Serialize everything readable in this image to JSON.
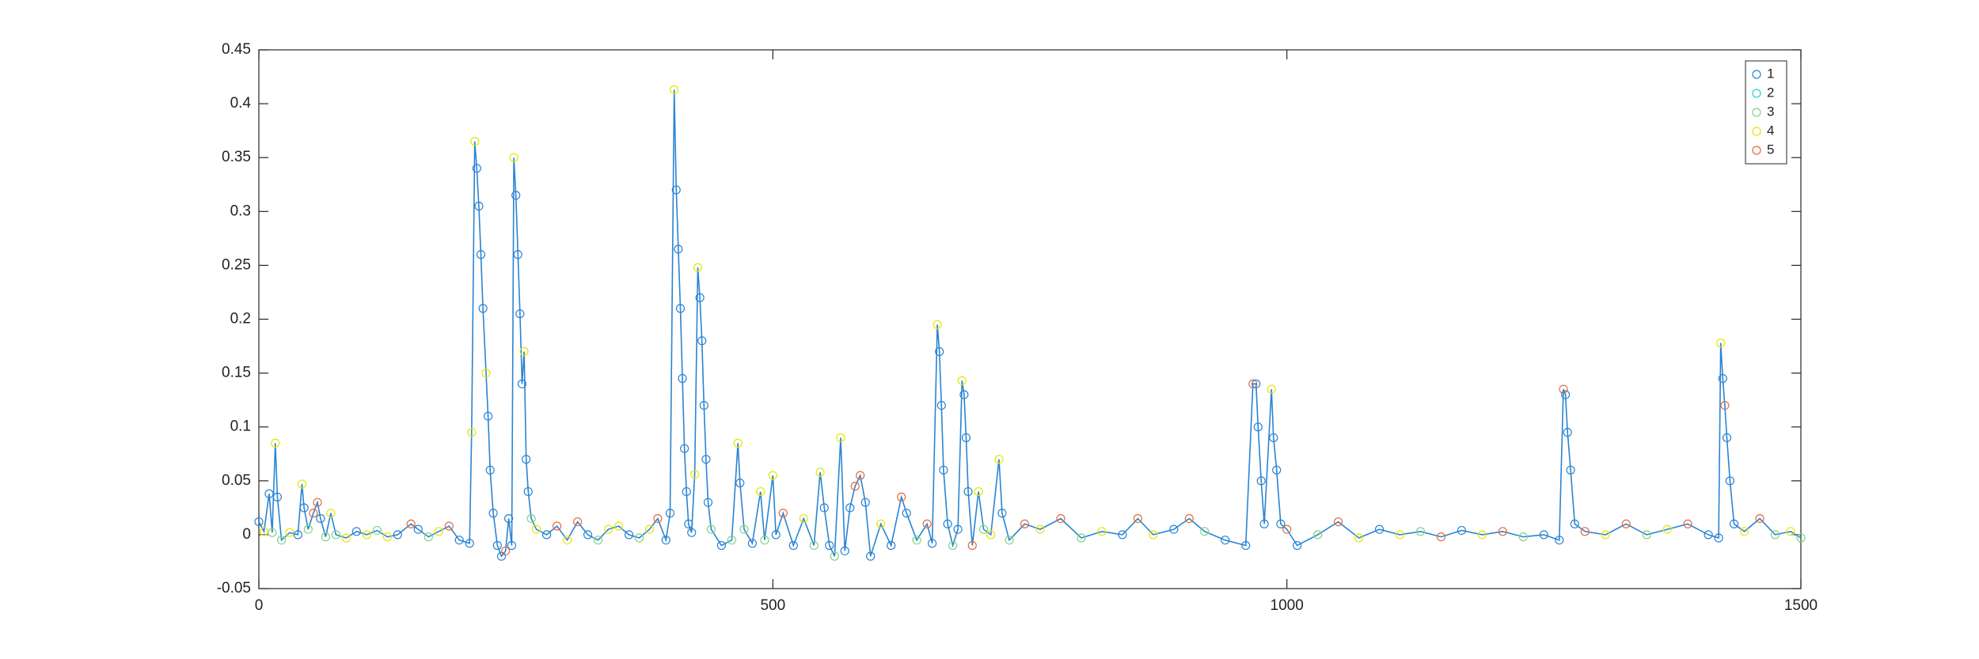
{
  "chart_data": {
    "type": "line-clusters",
    "xlim": [
      0,
      1500
    ],
    "xticks": [
      0,
      500,
      1000,
      1500
    ],
    "ylim": [
      -0.05,
      0.45
    ],
    "yticks": [
      -0.05,
      0,
      0.05,
      0.1,
      0.15,
      0.2,
      0.25,
      0.3,
      0.35,
      0.4,
      0.45
    ],
    "grid": false,
    "legend": "upper right",
    "line_color": "#2a84d2",
    "series": [
      {
        "name": "1",
        "color": "#2a84d2"
      },
      {
        "name": "2",
        "color": "#1fd3d0"
      },
      {
        "name": "3",
        "color": "#7fd57f"
      },
      {
        "name": "4",
        "color": "#e6e600"
      },
      {
        "name": "5",
        "color": "#ea6a35"
      }
    ],
    "x": [
      0,
      5,
      10,
      13,
      16,
      18,
      22,
      30,
      38,
      42,
      44,
      48,
      53,
      57,
      60,
      65,
      70,
      75,
      85,
      95,
      105,
      115,
      125,
      135,
      148,
      155,
      165,
      175,
      185,
      195,
      205,
      207,
      210,
      212,
      214,
      216,
      218,
      221,
      223,
      225,
      228,
      232,
      236,
      240,
      243,
      246,
      248,
      250,
      252,
      254,
      256,
      258,
      260,
      262,
      265,
      270,
      280,
      290,
      300,
      310,
      320,
      330,
      340,
      350,
      360,
      370,
      380,
      388,
      396,
      400,
      404,
      406,
      408,
      410,
      412,
      414,
      416,
      418,
      421,
      424,
      427,
      429,
      431,
      433,
      435,
      437,
      440,
      450,
      460,
      466,
      468,
      472,
      480,
      488,
      492,
      500,
      503,
      510,
      520,
      530,
      540,
      546,
      550,
      555,
      560,
      566,
      570,
      575,
      580,
      585,
      590,
      595,
      605,
      615,
      625,
      630,
      640,
      650,
      655,
      660,
      662,
      664,
      666,
      670,
      675,
      680,
      684,
      686,
      688,
      690,
      694,
      700,
      705,
      712,
      720,
      723,
      730,
      745,
      760,
      780,
      800,
      820,
      840,
      855,
      870,
      890,
      905,
      920,
      940,
      960,
      967,
      970,
      972,
      975,
      978,
      985,
      987,
      990,
      994,
      1000,
      1010,
      1030,
      1050,
      1070,
      1090,
      1110,
      1130,
      1150,
      1170,
      1190,
      1210,
      1230,
      1250,
      1265,
      1269,
      1271,
      1273,
      1276,
      1280,
      1290,
      1310,
      1330,
      1350,
      1370,
      1390,
      1410,
      1420,
      1422,
      1424,
      1426,
      1428,
      1431,
      1435,
      1445,
      1460,
      1475,
      1490,
      1500
    ],
    "values": [
      0.012,
      0.003,
      0.038,
      0.002,
      0.085,
      0.035,
      -0.005,
      0.002,
      0,
      0.047,
      0.025,
      0.005,
      0.02,
      0.03,
      0.015,
      -0.002,
      0.02,
      0,
      -0.003,
      0.003,
      0,
      0.004,
      -0.002,
      0,
      0.01,
      0.005,
      -0.002,
      0.003,
      0.008,
      -0.005,
      -0.008,
      0.095,
      0.365,
      0.34,
      0.305,
      0.26,
      0.21,
      0.15,
      0.11,
      0.06,
      0.02,
      -0.01,
      -0.02,
      -0.015,
      0.015,
      -0.01,
      0.35,
      0.315,
      0.26,
      0.205,
      0.14,
      0.17,
      0.07,
      0.04,
      0.015,
      0.005,
      0,
      0.008,
      -0.005,
      0.012,
      0,
      -0.005,
      0.005,
      0.008,
      0,
      -0.003,
      0.005,
      0.015,
      -0.005,
      0.02,
      0.413,
      0.32,
      0.265,
      0.21,
      0.145,
      0.08,
      0.04,
      0.01,
      0.002,
      0.056,
      0.248,
      0.22,
      0.18,
      0.12,
      0.07,
      0.03,
      0.005,
      -0.01,
      -0.005,
      0.085,
      0.048,
      0.005,
      -0.008,
      0.04,
      -0.005,
      0.055,
      0,
      0.02,
      -0.01,
      0.015,
      -0.01,
      0.058,
      0.025,
      -0.01,
      -0.02,
      0.09,
      -0.015,
      0.025,
      0.045,
      0.055,
      0.03,
      -0.02,
      0.01,
      -0.01,
      0.035,
      0.02,
      -0.005,
      0.01,
      -0.008,
      0.195,
      0.17,
      0.12,
      0.06,
      0.01,
      -0.01,
      0.005,
      0.143,
      0.13,
      0.09,
      0.04,
      -0.01,
      0.04,
      0.005,
      0,
      0.07,
      0.02,
      -0.005,
      0.01,
      0.005,
      0.015,
      -0.003,
      0.003,
      0,
      0.015,
      0,
      0.005,
      0.015,
      0.003,
      -0.005,
      -0.01,
      0.14,
      0.14,
      0.1,
      0.05,
      0.01,
      0.135,
      0.09,
      0.06,
      0.01,
      0.005,
      -0.01,
      0,
      0.012,
      -0.003,
      0.005,
      0,
      0.003,
      -0.002,
      0.004,
      0,
      0.003,
      -0.002,
      0,
      -0.005,
      0.135,
      0.13,
      0.095,
      0.06,
      0.01,
      0.003,
      0,
      0.01,
      0,
      0.005,
      0.01,
      0,
      -0.003,
      0.178,
      0.145,
      0.12,
      0.09,
      0.05,
      0.01,
      0.003,
      0.015,
      0,
      0.003,
      -0.003
    ],
    "groups": [
      0,
      3,
      0,
      2,
      3,
      0,
      2,
      3,
      0,
      3,
      0,
      2,
      4,
      4,
      0,
      2,
      3,
      2,
      3,
      0,
      3,
      2,
      3,
      0,
      4,
      0,
      2,
      3,
      4,
      0,
      0,
      3,
      3,
      0,
      0,
      0,
      0,
      3,
      0,
      0,
      0,
      0,
      0,
      4,
      0,
      0,
      3,
      0,
      0,
      0,
      0,
      3,
      0,
      0,
      2,
      3,
      0,
      4,
      3,
      4,
      0,
      2,
      3,
      3,
      0,
      2,
      3,
      4,
      0,
      0,
      3,
      0,
      0,
      0,
      0,
      0,
      0,
      0,
      0,
      3,
      3,
      0,
      0,
      0,
      0,
      0,
      2,
      0,
      2,
      3,
      0,
      2,
      0,
      3,
      2,
      3,
      0,
      4,
      0,
      3,
      2,
      3,
      0,
      0,
      2,
      3,
      0,
      0,
      4,
      4,
      0,
      0,
      3,
      0,
      4,
      0,
      2,
      4,
      0,
      3,
      0,
      0,
      0,
      0,
      2,
      0,
      3,
      0,
      0,
      0,
      4,
      3,
      2,
      3,
      3,
      0,
      2,
      4,
      3,
      4,
      2,
      3,
      0,
      4,
      3,
      0,
      4,
      2,
      0,
      0,
      4,
      0,
      0,
      0,
      0,
      3,
      0,
      0,
      0,
      4,
      0,
      2,
      4,
      3,
      0,
      3,
      2,
      4,
      0,
      3,
      4,
      2,
      0,
      0,
      4,
      0,
      0,
      0,
      0,
      4,
      3,
      4,
      2,
      3,
      4,
      0,
      0,
      3,
      0,
      4,
      0,
      0,
      0,
      3,
      4,
      2,
      3,
      2
    ]
  }
}
